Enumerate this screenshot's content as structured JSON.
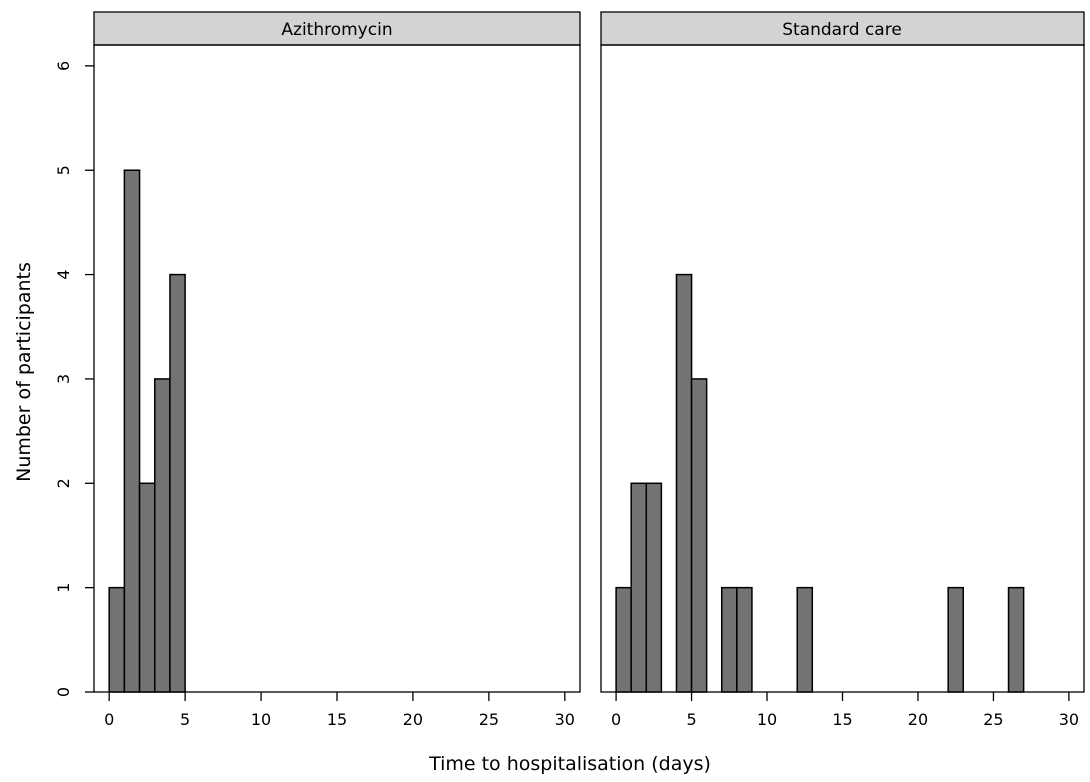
{
  "chart_data": {
    "type": "bar",
    "xlabel": "Time to hospitalisation (days)",
    "ylabel": "Number of participants",
    "xlim": [
      -1,
      31
    ],
    "ylim": [
      0,
      6.2
    ],
    "xticks": [
      0,
      5,
      10,
      15,
      20,
      25,
      30
    ],
    "yticks": [
      0,
      1,
      2,
      3,
      4,
      5,
      6
    ],
    "bin_width": 1,
    "panels": [
      {
        "title": "Azithromycin",
        "bins": [
          {
            "x": 0,
            "value": 1
          },
          {
            "x": 1,
            "value": 5
          },
          {
            "x": 2,
            "value": 2
          },
          {
            "x": 3,
            "value": 3
          },
          {
            "x": 4,
            "value": 4
          }
        ]
      },
      {
        "title": "Standard care",
        "bins": [
          {
            "x": 0,
            "value": 1
          },
          {
            "x": 1,
            "value": 2
          },
          {
            "x": 2,
            "value": 2
          },
          {
            "x": 4,
            "value": 4
          },
          {
            "x": 5,
            "value": 3
          },
          {
            "x": 7,
            "value": 1
          },
          {
            "x": 8,
            "value": 1
          },
          {
            "x": 12,
            "value": 1
          },
          {
            "x": 22,
            "value": 1
          },
          {
            "x": 26,
            "value": 1
          }
        ]
      }
    ],
    "colors": {
      "bar_fill": "#737373",
      "bar_stroke": "#000000",
      "strip_fill": "#d3d3d3"
    }
  }
}
